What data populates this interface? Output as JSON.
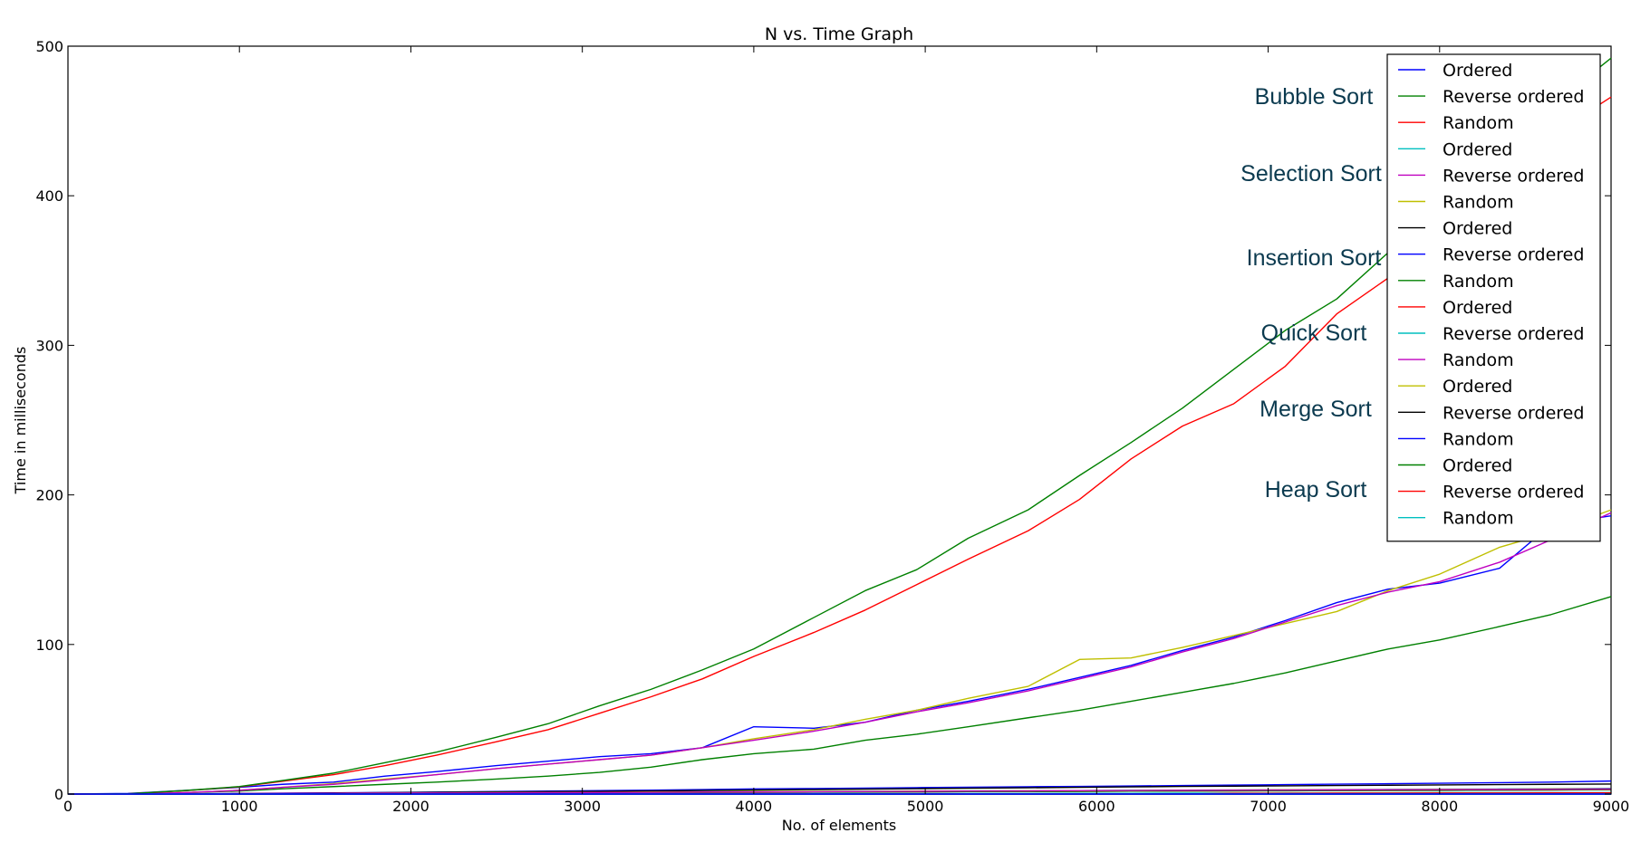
{
  "chart_data": {
    "type": "line",
    "title": "N vs. Time Graph",
    "xlabel": "No. of elements",
    "ylabel": "Time in milliseconds",
    "xlim": [
      0,
      9000
    ],
    "ylim": [
      0,
      500
    ],
    "xticks": [
      0,
      1000,
      2000,
      3000,
      4000,
      5000,
      6000,
      7000,
      8000,
      9000
    ],
    "yticks": [
      0,
      100,
      200,
      300,
      400,
      500
    ],
    "grid": false,
    "legend_position": "top-right",
    "annotations": [
      "Bubble Sort",
      "Selection Sort",
      "Insertion Sort",
      "Quick Sort",
      "Merge Sort",
      "Heap Sort"
    ],
    "x": [
      0,
      350,
      700,
      1000,
      1250,
      1550,
      1850,
      2150,
      2500,
      2800,
      3100,
      3400,
      3700,
      4000,
      4350,
      4650,
      4950,
      5250,
      5600,
      5900,
      6200,
      6500,
      6800,
      7100,
      7400,
      7700,
      8000,
      8350,
      8650,
      9000
    ],
    "series": [
      {
        "name": "Ordered",
        "color": "#0000ff",
        "values": [
          0,
          0,
          0,
          0,
          0,
          0,
          0,
          0,
          0,
          0,
          0,
          0,
          0,
          0,
          0,
          0,
          0,
          0,
          0,
          0,
          0,
          0,
          0,
          0,
          0,
          0,
          0,
          0,
          0,
          0
        ]
      },
      {
        "name": "Reverse ordered",
        "color": "#008000",
        "values": [
          0,
          0.2,
          2.5,
          5,
          9,
          14,
          21,
          28,
          38,
          47,
          59,
          70,
          83,
          97,
          118,
          136,
          150,
          171,
          190,
          213,
          235,
          258,
          284,
          310,
          331,
          362,
          396,
          428,
          460,
          492
        ]
      },
      {
        "name": "Random",
        "color": "#ff0000",
        "values": [
          0,
          0.2,
          2.4,
          4.8,
          8.5,
          13,
          19,
          26,
          35,
          43,
          54,
          65,
          77,
          92,
          108,
          123,
          140,
          157,
          176,
          197,
          224,
          246,
          261,
          286,
          321,
          345,
          383,
          410,
          440,
          466
        ]
      },
      {
        "name": "Ordered",
        "color": "#00bfbf",
        "values": [
          0,
          0,
          0,
          0,
          0,
          0,
          0,
          0,
          0,
          0,
          0,
          0,
          0,
          0,
          0,
          0,
          0,
          0,
          0,
          0,
          0,
          0,
          0,
          0,
          0,
          0,
          0,
          0,
          0,
          0
        ]
      },
      {
        "name": "Reverse ordered",
        "color": "#bf00bf",
        "values": [
          0,
          0,
          1,
          2.5,
          4.5,
          6.5,
          9.5,
          13,
          17,
          20,
          23,
          26,
          31,
          36,
          42,
          48,
          55,
          61,
          69,
          77,
          85,
          95,
          104,
          115,
          126,
          135,
          142,
          155,
          170,
          188
        ]
      },
      {
        "name": "Random",
        "color": "#bfbf00",
        "values": [
          0,
          0,
          1,
          2.5,
          4.5,
          7,
          10,
          13,
          17,
          20,
          23,
          26,
          31,
          37,
          43,
          50,
          56,
          64,
          72,
          90,
          91,
          98,
          106,
          114,
          122,
          136,
          147,
          165,
          175,
          190
        ]
      },
      {
        "name": "Ordered",
        "color": "#000000",
        "values": [
          0,
          0,
          0,
          0,
          0,
          0,
          0,
          0,
          0,
          0,
          0,
          0,
          0,
          0,
          0,
          0,
          0,
          0,
          0,
          0,
          0,
          0,
          0,
          0,
          0,
          0,
          0,
          0,
          0,
          0
        ]
      },
      {
        "name": "Reverse ordered",
        "color": "#0000ff",
        "values": [
          0,
          0.4,
          2.5,
          4.5,
          6.5,
          8,
          12,
          15,
          19,
          22,
          25,
          27,
          31,
          45,
          44,
          48,
          56,
          62,
          70,
          78,
          86,
          96,
          105,
          116,
          128,
          137,
          141,
          151,
          180,
          186
        ]
      },
      {
        "name": "Random",
        "color": "#008000",
        "values": [
          0,
          0,
          1,
          2,
          3.5,
          5,
          6.5,
          8,
          10,
          12,
          14.5,
          18,
          23,
          27,
          30,
          36,
          40,
          45,
          51,
          56,
          62,
          68,
          74,
          81,
          89,
          97,
          103,
          112,
          120,
          132
        ]
      },
      {
        "name": "Ordered",
        "color": "#ff0000",
        "values": [
          0,
          0,
          0,
          0,
          0,
          0,
          0,
          0,
          0,
          0,
          0,
          0,
          0,
          0,
          0,
          0,
          0,
          0,
          0,
          0,
          0,
          0,
          0.5,
          0.5,
          0.6,
          0.6,
          0.7,
          0.7,
          0.8,
          0.8
        ]
      },
      {
        "name": "Reverse ordered",
        "color": "#00bfbf",
        "values": [
          0,
          0,
          0,
          0,
          0,
          0,
          0,
          0,
          0,
          0,
          0,
          0,
          0.2,
          0.2,
          0.3,
          0.3,
          0.3,
          0.4,
          0.4,
          0.5,
          0.5,
          0.6,
          0.6,
          0.7,
          0.7,
          0.8,
          0.9,
          0.9,
          1.0,
          1.0
        ]
      },
      {
        "name": "Random",
        "color": "#bf00bf",
        "values": [
          0,
          0,
          0,
          0.3,
          0.4,
          0.5,
          0.6,
          0.7,
          0.8,
          0.9,
          1.0,
          1.1,
          1.3,
          1.4,
          1.5,
          1.7,
          1.8,
          2.0,
          2.1,
          2.3,
          2.4,
          2.5,
          2.6,
          2.7,
          2.8,
          2.9,
          3.0,
          3.1,
          3.2,
          3.4
        ]
      },
      {
        "name": "Ordered",
        "color": "#bfbf00",
        "values": [
          0,
          0,
          0.1,
          0.2,
          0.4,
          0.5,
          0.6,
          0.8,
          0.9,
          1.0,
          1.1,
          1.3,
          1.4,
          1.6,
          1.7,
          1.8,
          2.0,
          2.1,
          2.2,
          2.3,
          2.4,
          2.6,
          2.7,
          2.8,
          2.9,
          3.0,
          3.1,
          3.2,
          3.4,
          3.5
        ]
      },
      {
        "name": "Reverse ordered",
        "color": "#000000",
        "values": [
          0,
          0,
          0.2,
          0.3,
          0.5,
          0.7,
          0.9,
          1.2,
          1.4,
          1.6,
          1.8,
          2.1,
          2.4,
          2.7,
          3.0,
          3.3,
          3.6,
          3.9,
          4.2,
          4.5,
          4.8,
          5.1,
          5.3,
          5.5,
          5.7,
          5.9,
          6.1,
          6.3,
          6.5,
          6.7
        ]
      },
      {
        "name": "Random",
        "color": "#0000ff",
        "values": [
          0,
          0,
          0.2,
          0.4,
          0.6,
          0.8,
          1.0,
          1.3,
          1.7,
          2.0,
          2.3,
          2.6,
          3.0,
          3.4,
          3.7,
          4.0,
          4.3,
          4.6,
          4.9,
          5.1,
          5.4,
          5.7,
          6.0,
          6.3,
          6.6,
          6.9,
          7.2,
          7.6,
          8.0,
          8.7
        ]
      },
      {
        "name": "Ordered",
        "color": "#008000",
        "values": [
          0,
          0,
          0.1,
          0.2,
          0.3,
          0.4,
          0.5,
          0.6,
          0.7,
          0.8,
          0.9,
          1.0,
          1.1,
          1.2,
          1.3,
          1.4,
          1.5,
          1.6,
          1.7,
          1.8,
          1.9,
          2.0,
          2.1,
          2.2,
          2.3,
          2.4,
          2.5,
          2.6,
          2.8,
          3.0
        ]
      },
      {
        "name": "Reverse ordered",
        "color": "#ff0000",
        "values": [
          0,
          0,
          0.1,
          0.2,
          0.3,
          0.4,
          0.5,
          0.6,
          0.7,
          0.8,
          0.9,
          1.0,
          1.1,
          1.2,
          1.3,
          1.4,
          1.5,
          1.6,
          1.7,
          1.8,
          1.9,
          2.0,
          2.1,
          2.2,
          2.3,
          2.4,
          2.5,
          2.6,
          2.7,
          2.9
        ]
      },
      {
        "name": "Random",
        "color": "#00bfbf",
        "values": [
          0,
          0,
          0.1,
          0.2,
          0.4,
          0.5,
          0.6,
          0.7,
          0.9,
          1.0,
          1.1,
          1.3,
          1.4,
          1.5,
          1.7,
          1.8,
          1.9,
          2.1,
          2.2,
          2.3,
          2.5,
          2.6,
          2.7,
          2.9,
          3.0,
          3.1,
          3.3,
          3.4,
          3.6,
          3.8
        ]
      }
    ]
  }
}
